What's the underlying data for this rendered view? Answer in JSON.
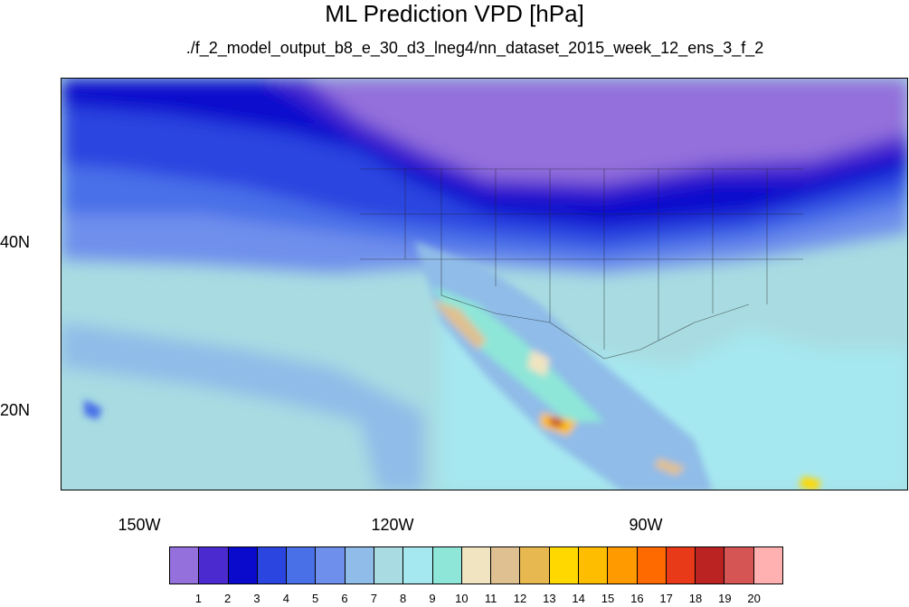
{
  "title": "ML Prediction VPD [hPa]",
  "subtitle": "./f_2_model_output_b8_e_30_d3_lneg4/nn_dataset_2015_week_12_ens_3_f_2",
  "map": {
    "latitude_labels": [
      "40N",
      "20N"
    ],
    "longitude_labels": [
      "150W",
      "120W",
      "90W"
    ]
  },
  "colorbar": {
    "colors": [
      "#9370db",
      "#4b2bd0",
      "#0a0acd",
      "#2b45e0",
      "#4a70e8",
      "#6f8fec",
      "#8fbce8",
      "#a8dce2",
      "#a6e8f0",
      "#8ee6d8",
      "#f1e4c0",
      "#dfc090",
      "#e8b850",
      "#ffd800",
      "#ffbd00",
      "#ff9a00",
      "#ff6a00",
      "#e83a18",
      "#bb2222",
      "#d55555",
      "#ffb0b0"
    ],
    "labels": [
      "1",
      "2",
      "3",
      "4",
      "5",
      "6",
      "7",
      "8",
      "9",
      "10",
      "11",
      "12",
      "13",
      "14",
      "15",
      "16",
      "17",
      "18",
      "19",
      "20"
    ]
  }
}
